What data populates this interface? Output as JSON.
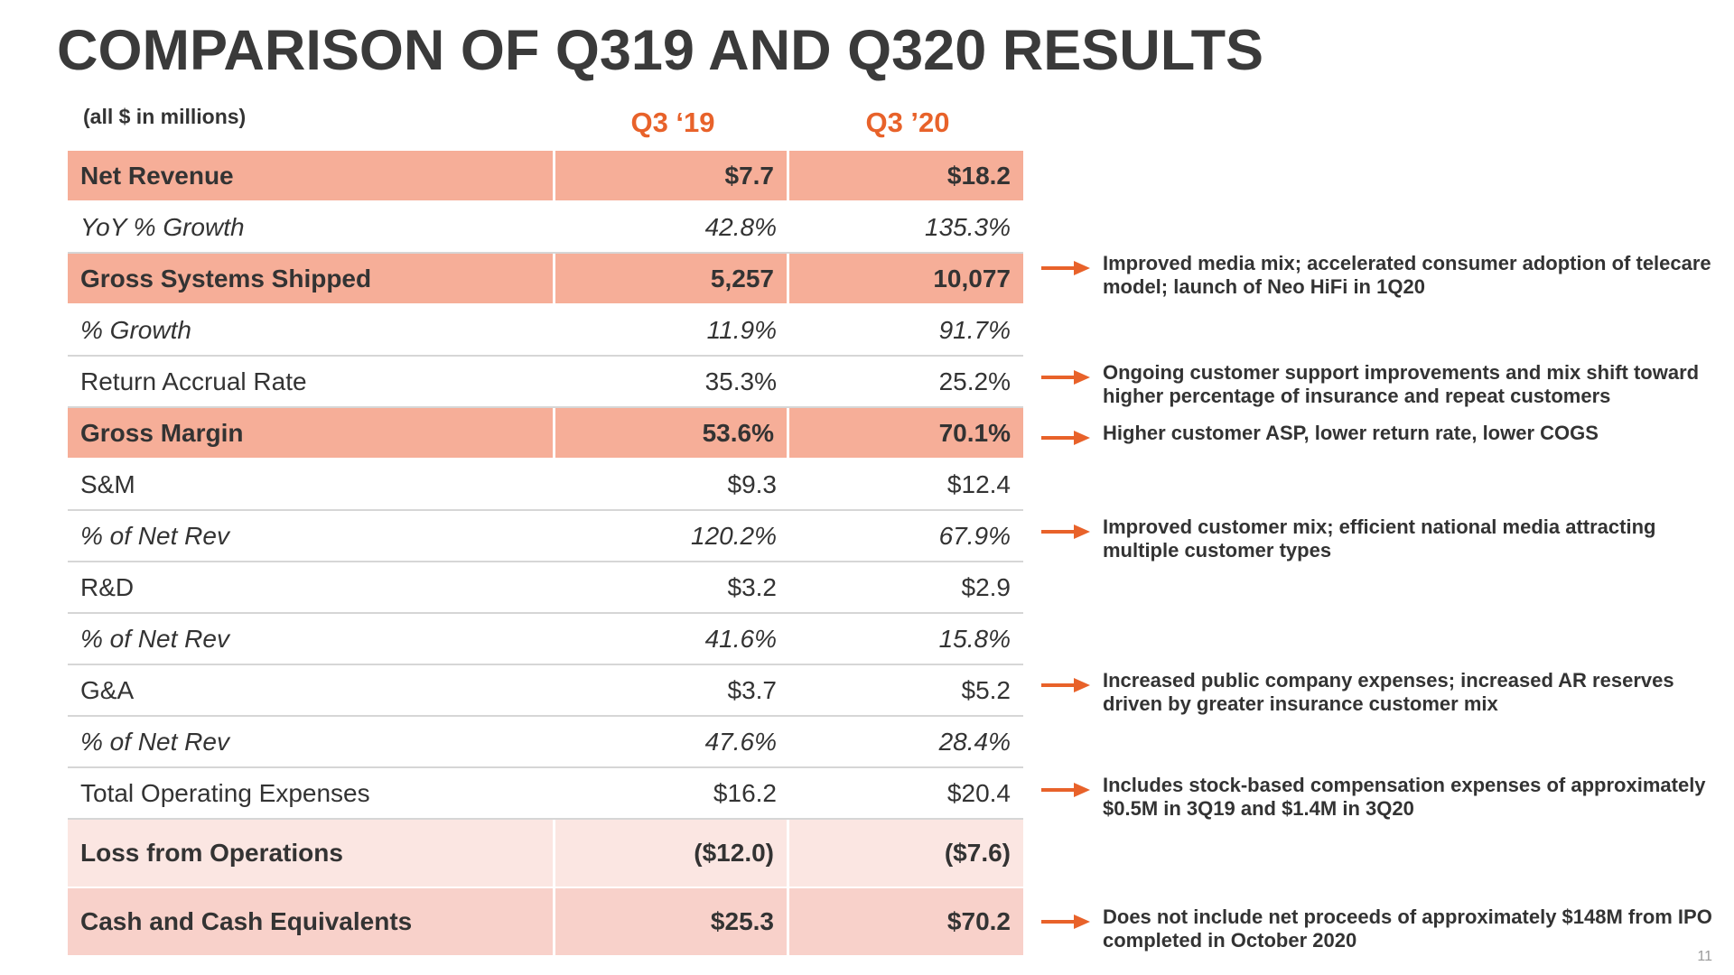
{
  "title": "COMPARISON OF Q319 AND Q320 RESULTS",
  "units_note": "(all $ in millions)",
  "columns": [
    "Q3 ‘19",
    "Q3 ’20"
  ],
  "accent_color": "#e8622a",
  "highlight_color": "#f6ae98",
  "rows": [
    {
      "label": "Net Revenue",
      "q319": "$7.7",
      "q320": "$18.2"
    },
    {
      "label": "YoY % Growth",
      "q319": "42.8%",
      "q320": "135.3%"
    },
    {
      "label": "Gross Systems Shipped",
      "q319": "5,257",
      "q320": "10,077"
    },
    {
      "label": "% Growth",
      "q319": "11.9%",
      "q320": "91.7%"
    },
    {
      "label": "Return Accrual Rate",
      "q319": "35.3%",
      "q320": "25.2%"
    },
    {
      "label": "Gross Margin",
      "q319": "53.6%",
      "q320": "70.1%"
    },
    {
      "label": "S&M",
      "q319": "$9.3",
      "q320": "$12.4"
    },
    {
      "label": "% of Net Rev",
      "q319": "120.2%",
      "q320": "67.9%"
    },
    {
      "label": "R&D",
      "q319": "$3.2",
      "q320": "$2.9"
    },
    {
      "label": "% of Net Rev",
      "q319": "41.6%",
      "q320": "15.8%"
    },
    {
      "label": "G&A",
      "q319": "$3.7",
      "q320": "$5.2"
    },
    {
      "label": "% of Net Rev",
      "q319": "47.6%",
      "q320": "28.4%"
    },
    {
      "label": "Total Operating Expenses",
      "q319": "$16.2",
      "q320": "$20.4"
    },
    {
      "label": "Loss from Operations",
      "q319": "($12.0)",
      "q320": "($7.6)"
    },
    {
      "label": "Cash and Cash Equivalents",
      "q319": "$25.3",
      "q320": "$70.2"
    }
  ],
  "notes": [
    {
      "text": "Improved media mix; accelerated consumer adoption of telecare model; launch of Neo HiFi in 1Q20",
      "icon": "arrow-right-icon"
    },
    {
      "text": "Ongoing customer support improvements and mix shift toward higher percentage of insurance and repeat customers",
      "icon": "arrow-right-icon"
    },
    {
      "text": "Higher customer ASP, lower return rate, lower COGS",
      "icon": "arrow-right-icon"
    },
    {
      "text": "Improved customer mix; efficient national media attracting multiple customer types",
      "icon": "arrow-right-icon"
    },
    {
      "text": "Increased public company expenses; increased AR reserves driven by greater insurance customer mix",
      "icon": "arrow-right-icon"
    },
    {
      "text": "Includes stock-based compensation expenses of approximately $0.5M in 3Q19 and $1.4M in 3Q20",
      "icon": "arrow-right-icon"
    },
    {
      "text": "Does not include net proceeds of approximately $148M from IPO completed in October 2020",
      "icon": "arrow-right-icon"
    }
  ],
  "page_number": "11"
}
